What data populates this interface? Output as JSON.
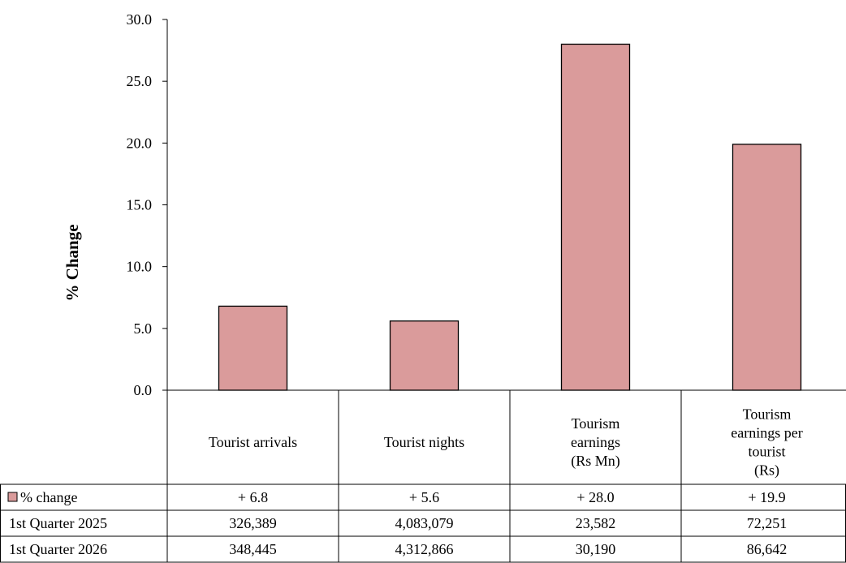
{
  "chart_data": {
    "type": "bar",
    "title": "",
    "ylabel": "% Change",
    "xlabel": "",
    "ylim": [
      0,
      30
    ],
    "yticks": [
      "0.0",
      "5.0",
      "10.0",
      "15.0",
      "20.0",
      "25.0",
      "30.0"
    ],
    "grid": false,
    "categories": [
      [
        "Tourist arrivals"
      ],
      [
        "Tourist nights"
      ],
      [
        "Tourism",
        "earnings",
        "(Rs Mn)"
      ],
      [
        "Tourism",
        "earnings per",
        "tourist",
        "(Rs)"
      ]
    ],
    "series": [
      {
        "name": "% change",
        "values": [
          6.8,
          5.6,
          28.0,
          19.9
        ],
        "color": "#da9b9b"
      }
    ],
    "table": {
      "rows": [
        {
          "label": "% change",
          "cells": [
            "+ 6.8",
            "+ 5.6",
            "+ 28.0",
            "+ 19.9"
          ],
          "legend_swatch": true
        },
        {
          "label": "1st Quarter 2025",
          "cells": [
            "326,389",
            "4,083,079",
            "23,582",
            "72,251"
          ]
        },
        {
          "label": "1st Quarter 2026",
          "cells": [
            "348,445",
            "4,312,866",
            "30,190",
            "86,642"
          ]
        }
      ]
    }
  }
}
